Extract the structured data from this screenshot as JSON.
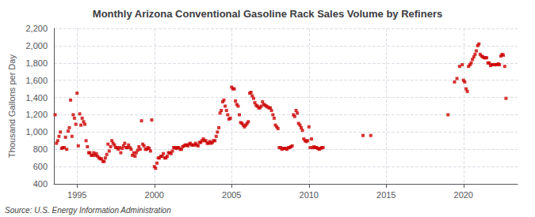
{
  "chart_data": {
    "type": "scatter",
    "title": "Monthly Arizona Conventional Gasoline Rack Sales Volume by Refiners",
    "ylabel": "Thousand Gallons per Day",
    "annotations": [
      "Source: U.S. Energy Information Administration"
    ],
    "color": "#CC0000",
    "marker": "square",
    "grid": true,
    "xlim": [
      1993.5,
      2023.5
    ],
    "xticks": [
      1995,
      2000,
      2005,
      2010,
      2015,
      2020
    ],
    "ylim": [
      400,
      2200
    ],
    "yticks": [
      400,
      600,
      800,
      {
        "value": 1000,
        "label": "1,000"
      },
      {
        "value": 1200,
        "label": "1,200"
      },
      {
        "value": 1400,
        "label": "1,400"
      },
      {
        "value": 1600,
        "label": "1,600"
      },
      {
        "value": 1800,
        "label": "1,800"
      },
      {
        "value": 2000,
        "label": "2,000"
      },
      {
        "value": 2200,
        "label": "2,200"
      }
    ],
    "x": [
      1993.58,
      1993.67,
      1993.75,
      1993.83,
      1993.92,
      1994.0,
      1994.08,
      1994.17,
      1994.25,
      1994.33,
      1994.42,
      1994.5,
      1994.58,
      1994.67,
      1994.75,
      1994.83,
      1994.92,
      1995.0,
      1995.08,
      1995.17,
      1995.25,
      1995.33,
      1995.42,
      1995.5,
      1995.58,
      1995.67,
      1995.75,
      1995.83,
      1995.92,
      1996.0,
      1996.08,
      1996.17,
      1996.25,
      1996.33,
      1996.42,
      1996.5,
      1996.58,
      1996.67,
      1996.75,
      1996.83,
      1996.92,
      1997.0,
      1997.08,
      1997.17,
      1997.25,
      1997.33,
      1997.42,
      1997.5,
      1997.58,
      1997.67,
      1997.75,
      1997.83,
      1997.92,
      1998.0,
      1998.08,
      1998.17,
      1998.25,
      1998.33,
      1998.42,
      1998.5,
      1998.58,
      1998.67,
      1998.75,
      1998.83,
      1998.92,
      1999.0,
      1999.08,
      1999.17,
      1999.25,
      1999.33,
      1999.42,
      1999.5,
      1999.58,
      1999.67,
      1999.75,
      1999.83,
      2000.0,
      2000.08,
      2000.17,
      2000.25,
      2000.33,
      2000.42,
      2000.5,
      2000.58,
      2000.67,
      2000.75,
      2000.83,
      2000.92,
      2001.0,
      2001.08,
      2001.17,
      2001.25,
      2001.33,
      2001.42,
      2001.5,
      2001.58,
      2001.67,
      2001.75,
      2001.83,
      2001.92,
      2002.0,
      2002.08,
      2002.17,
      2002.25,
      2002.33,
      2002.42,
      2002.5,
      2002.58,
      2002.67,
      2002.75,
      2002.83,
      2002.92,
      2003.0,
      2003.08,
      2003.17,
      2003.25,
      2003.33,
      2003.42,
      2003.5,
      2003.58,
      2003.67,
      2003.75,
      2003.83,
      2003.92,
      2004.0,
      2004.08,
      2004.17,
      2004.25,
      2004.33,
      2004.42,
      2004.5,
      2004.58,
      2004.67,
      2004.75,
      2004.83,
      2004.92,
      2005.0,
      2005.08,
      2005.17,
      2005.25,
      2005.33,
      2005.42,
      2005.5,
      2005.58,
      2005.67,
      2005.75,
      2005.83,
      2005.92,
      2006.0,
      2006.08,
      2006.17,
      2006.25,
      2006.33,
      2006.42,
      2006.5,
      2006.58,
      2006.67,
      2006.75,
      2006.83,
      2006.92,
      2007.0,
      2007.08,
      2007.17,
      2007.25,
      2007.33,
      2007.42,
      2007.5,
      2007.58,
      2007.67,
      2007.75,
      2007.83,
      2007.92,
      2008.0,
      2008.08,
      2008.17,
      2008.25,
      2008.33,
      2008.42,
      2008.5,
      2008.58,
      2008.67,
      2008.75,
      2008.83,
      2008.92,
      2009.0,
      2009.08,
      2009.17,
      2009.25,
      2009.33,
      2009.42,
      2009.5,
      2009.58,
      2009.67,
      2009.75,
      2009.83,
      2009.92,
      2010.0,
      2010.08,
      2010.17,
      2010.25,
      2010.33,
      2010.42,
      2010.5,
      2010.58,
      2010.67,
      2010.75,
      2010.83,
      2010.92,
      2013.5,
      2014.0,
      2019.0,
      2019.42,
      2019.58,
      2019.75,
      2019.92,
      2020.0,
      2020.08,
      2020.17,
      2020.25,
      2020.33,
      2020.42,
      2020.5,
      2020.58,
      2020.67,
      2020.75,
      2020.83,
      2020.92,
      2021.0,
      2021.08,
      2021.17,
      2021.25,
      2021.33,
      2021.42,
      2021.5,
      2021.58,
      2021.67,
      2021.75,
      2021.83,
      2021.92,
      2022.0,
      2022.08,
      2022.17,
      2022.25,
      2022.33,
      2022.42,
      2022.5,
      2022.58,
      2022.67,
      2022.75
    ],
    "values": [
      1200,
      870,
      900,
      950,
      1000,
      810,
      820,
      820,
      940,
      800,
      1010,
      1050,
      1370,
      950,
      1200,
      1160,
      1090,
      1450,
      840,
      1210,
      1080,
      1160,
      1120,
      1090,
      900,
      830,
      760,
      760,
      730,
      730,
      760,
      730,
      750,
      720,
      700,
      690,
      690,
      660,
      660,
      700,
      740,
      860,
      780,
      830,
      900,
      870,
      850,
      820,
      820,
      800,
      820,
      760,
      810,
      840,
      870,
      820,
      820,
      850,
      820,
      800,
      730,
      760,
      720,
      760,
      790,
      830,
      800,
      1130,
      860,
      840,
      800,
      800,
      820,
      810,
      780,
      1140,
      600,
      580,
      640,
      700,
      700,
      720,
      720,
      750,
      700,
      700,
      720,
      760,
      760,
      750,
      780,
      820,
      820,
      810,
      820,
      820,
      800,
      800,
      830,
      840,
      850,
      850,
      840,
      860,
      870,
      850,
      850,
      850,
      870,
      850,
      840,
      880,
      880,
      900,
      920,
      900,
      900,
      870,
      870,
      890,
      870,
      880,
      900,
      900,
      950,
      1000,
      1050,
      1220,
      1250,
      1350,
      1370,
      1300,
      1250,
      1200,
      1150,
      1160,
      1520,
      1500,
      1500,
      1360,
      1320,
      1300,
      1200,
      1110,
      1100,
      1080,
      1060,
      1080,
      1100,
      1120,
      1450,
      1460,
      1420,
      1390,
      1340,
      1310,
      1300,
      1280,
      1280,
      1300,
      1350,
      1320,
      1310,
      1300,
      1290,
      1280,
      1280,
      1250,
      1200,
      1160,
      1080,
      1060,
      1040,
      820,
      820,
      800,
      810,
      810,
      810,
      800,
      820,
      820,
      830,
      840,
      1200,
      1180,
      1250,
      1220,
      1100,
      1080,
      1050,
      1020,
      920,
      900,
      890,
      900,
      1060,
      820,
      920,
      820,
      830,
      820,
      820,
      810,
      800,
      810,
      820,
      820,
      960,
      960,
      1200,
      1580,
      1620,
      1760,
      1780,
      1600,
      1580,
      1500,
      1470,
      1760,
      1780,
      1800,
      1840,
      1870,
      1900,
      1940,
      2000,
      2020,
      1900,
      1880,
      1870,
      1860,
      1860,
      1860,
      1800,
      1800,
      1770,
      1780,
      1780,
      1780,
      1780,
      1780,
      1790,
      1780,
      1880,
      1900,
      1890,
      1760,
      1390
    ]
  }
}
